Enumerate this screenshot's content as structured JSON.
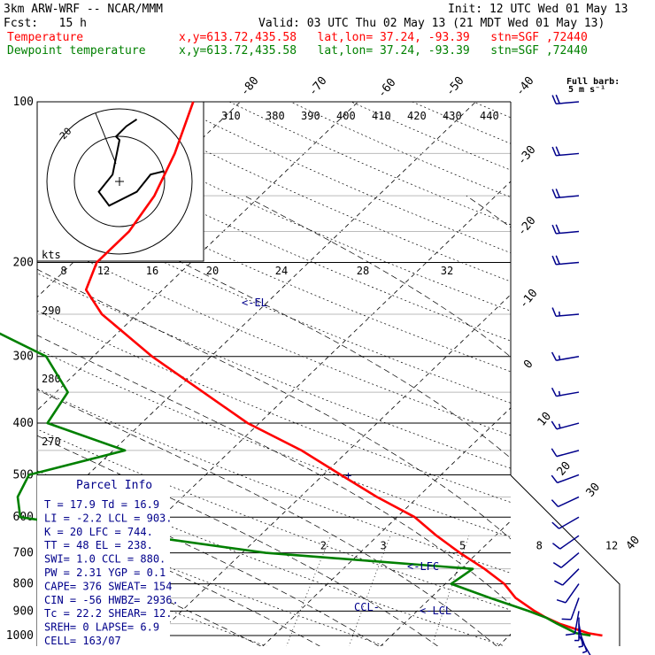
{
  "header": {
    "title": "3km ARW-WRF -- NCAR/MMM",
    "init": "Init: 12 UTC Wed 01 May 13",
    "fcst": "Fcst:   15 h",
    "valid": "Valid: 03 UTC Thu 02 May 13 (21 MDT Wed 01 May 13)",
    "temp_label": "Temperature",
    "dew_label": "Dewpoint temperature",
    "temp_loc": "x,y=613.72,435.58   lat,lon= 37.24, -93.39   stn=SGF ,72440",
    "dew_loc": "x,y=613.72,435.58   lat,lon= 37.24, -93.39   stn=SGF ,72440"
  },
  "colors": {
    "temperature": "#ff0000",
    "dewpoint": "#008000",
    "annotation": "#00008b"
  },
  "chart_data": {
    "type": "line",
    "title": "",
    "ylabel": "",
    "pressure_ticks": [
      100,
      200,
      300,
      400,
      500,
      600,
      700,
      800,
      900,
      1000
    ],
    "pressure_tick_labels": [
      "100",
      "200",
      "300",
      "400",
      "500",
      "600",
      "700",
      "800",
      "900",
      "1000"
    ],
    "temp_isotherm_labels": [
      "-80",
      "-70",
      "-60",
      "-50",
      "-40",
      "-30",
      "-20",
      "-10",
      "0",
      "10",
      "20",
      "30",
      "40"
    ],
    "theta_labels": [
      "310",
      "380",
      "390",
      "400",
      "410",
      "420",
      "430",
      "440"
    ],
    "hodograph_speed_labels": [
      "8",
      "12",
      "16",
      "20",
      "24",
      "28",
      "32"
    ],
    "hodograph_unit": "kts",
    "hodograph_ring_label": "20",
    "mixing_ratio_labels": [
      "2",
      "3",
      "5",
      "8",
      "12",
      "20"
    ],
    "dry_adiabat_labels": [
      "290",
      "280",
      "270"
    ],
    "level_labels": [
      "EL",
      "LFC",
      "LCL",
      "CCL"
    ],
    "wind_legend": [
      "Full barb:",
      "5 m s⁻¹"
    ],
    "series": [
      {
        "name": "Temperature",
        "pressure": [
          1000,
          990,
          950,
          925,
          900,
          850,
          800,
          750,
          700,
          650,
          600,
          550,
          500,
          450,
          400,
          350,
          300,
          250,
          225,
          200,
          175,
          150,
          125,
          100
        ],
        "temp_c": [
          17.9,
          16.5,
          13.2,
          11.5,
          10.0,
          7.2,
          5.0,
          2.0,
          -1.5,
          -5.0,
          -8.5,
          -13.5,
          -18.5,
          -24.0,
          -31.0,
          -37.5,
          -45.0,
          -53.0,
          -56.5,
          -58.0,
          -58.0,
          -59.0,
          -61.0,
          -64.0
        ]
      },
      {
        "name": "Dewpoint temperature",
        "pressure": [
          1000,
          990,
          950,
          925,
          900,
          850,
          800,
          750,
          700,
          650,
          600,
          550,
          500,
          450,
          400,
          350,
          300,
          250,
          225,
          200,
          175,
          150,
          125,
          100
        ],
        "temp_c": [
          16.9,
          15.5,
          13.0,
          11.5,
          9.5,
          5.0,
          0.5,
          1.0,
          -18.0,
          -30.0,
          -42.0,
          -44.0,
          -45.0,
          -39.0,
          -48.0,
          -49.0,
          -54.0,
          -65.0,
          -70.0,
          -75.0,
          -77.0,
          -77.0,
          -80.0,
          -90.0
        ]
      }
    ],
    "hodograph_points": [
      [
        13,
        3
      ],
      [
        9,
        2
      ],
      [
        5,
        -3
      ],
      [
        -3,
        -7
      ],
      [
        -6,
        -3
      ],
      [
        -2,
        2
      ],
      [
        0,
        12
      ],
      [
        -1,
        13
      ],
      [
        2,
        16
      ],
      [
        5,
        18
      ]
    ],
    "wind_barbs": [
      {
        "p": 1000,
        "speed_ms": 3,
        "dir": 150
      },
      {
        "p": 975,
        "speed_ms": 5,
        "dir": 160
      },
      {
        "p": 950,
        "speed_ms": 6,
        "dir": 170
      },
      {
        "p": 925,
        "speed_ms": 7,
        "dir": 180
      },
      {
        "p": 900,
        "speed_ms": 8,
        "dir": 190
      },
      {
        "p": 850,
        "speed_ms": 8,
        "dir": 200
      },
      {
        "p": 800,
        "speed_ms": 8,
        "dir": 215
      },
      {
        "p": 750,
        "speed_ms": 9,
        "dir": 225
      },
      {
        "p": 700,
        "speed_ms": 10,
        "dir": 230
      },
      {
        "p": 650,
        "speed_ms": 10,
        "dir": 235
      },
      {
        "p": 600,
        "speed_ms": 10,
        "dir": 240
      },
      {
        "p": 550,
        "speed_ms": 11,
        "dir": 245
      },
      {
        "p": 500,
        "speed_ms": 12,
        "dir": 250
      },
      {
        "p": 450,
        "speed_ms": 12,
        "dir": 255
      },
      {
        "p": 400,
        "speed_ms": 13,
        "dir": 255
      },
      {
        "p": 350,
        "speed_ms": 15,
        "dir": 260
      },
      {
        "p": 300,
        "speed_ms": 17,
        "dir": 260
      },
      {
        "p": 250,
        "speed_ms": 17,
        "dir": 265
      },
      {
        "p": 200,
        "speed_ms": 20,
        "dir": 265
      },
      {
        "p": 175,
        "speed_ms": 20,
        "dir": 265
      },
      {
        "p": 150,
        "speed_ms": 20,
        "dir": 265
      },
      {
        "p": 125,
        "speed_ms": 20,
        "dir": 265
      },
      {
        "p": 100,
        "speed_ms": 20,
        "dir": 265
      }
    ],
    "parcel_info": {
      "title": "Parcel Info",
      "rows": [
        "T  =   17.9  Td =  16.9",
        "LI =   -2.2  LCL =  903.",
        "K  =     20  LFC =  744.",
        "TT =     48  EL  =  238.",
        "SWI=    1.0  CCL =  880.",
        "PW =   2.31  YGP =   0.1",
        "CAPE=   376  SWEAT=  154",
        "CIN =   -56  HWBZ= 2936.",
        "Tc =   22.2  SHEAR=  12.",
        "SREH=     0  LAPSE=  6.9",
        "CELL= 163/07"
      ]
    }
  }
}
